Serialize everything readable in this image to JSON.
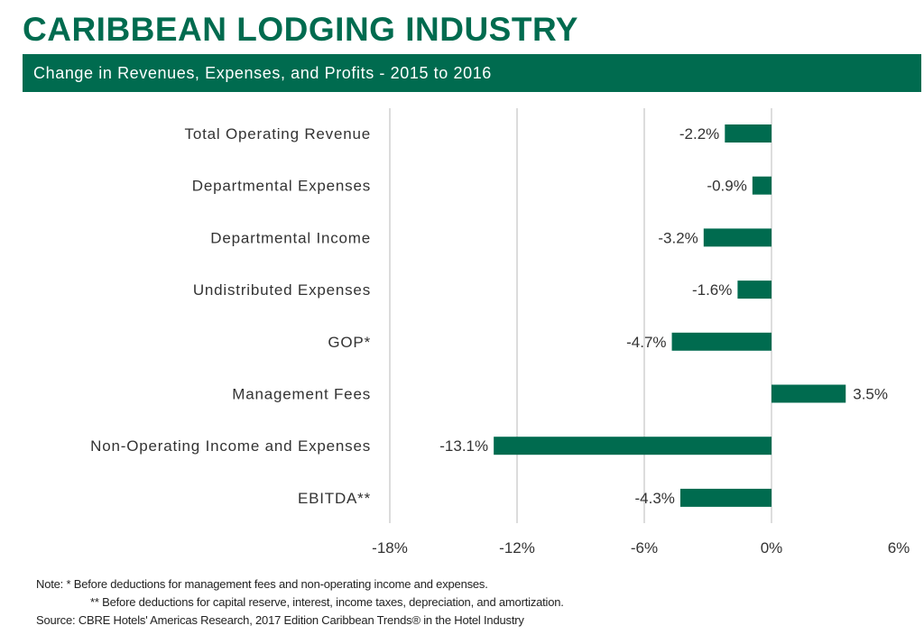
{
  "title": "CARIBBEAN LODGING INDUSTRY",
  "subtitle": "Change in Revenues, Expenses, and Profits - 2015 to 2016",
  "colors": {
    "bar": "#006b4f",
    "banner": "#006b4f",
    "title": "#006b4f",
    "grid": "#d0d0d0"
  },
  "chart_data": {
    "type": "bar",
    "orientation": "horizontal",
    "categories": [
      "Total Operating Revenue",
      "Departmental Expenses",
      "Departmental Income",
      "Undistributed Expenses",
      "GOP*",
      "Management Fees",
      "Non-Operating Income and Expenses",
      "EBITDA**"
    ],
    "values": [
      -2.2,
      -0.9,
      -3.2,
      -1.6,
      -4.7,
      3.5,
      -13.1,
      -4.3
    ],
    "data_labels": [
      "-2.2%",
      "-0.9%",
      "-3.2%",
      "-1.6%",
      "-4.7%",
      "3.5%",
      "-13.1%",
      "-4.3%"
    ],
    "xlim": [
      -18,
      6
    ],
    "xticks": [
      -18,
      -12,
      -6,
      0,
      6
    ],
    "xtick_labels": [
      "-18%",
      "-12%",
      "-6%",
      "0%",
      "6%"
    ],
    "grid": "vertical",
    "legend": "none"
  },
  "notes": {
    "note1": "Note: * Before deductions for management fees and non-operating income and expenses.",
    "note2": "** Before deductions for capital reserve, interest, income taxes, depreciation, and amortization.",
    "source": "Source: CBRE Hotels' Americas Research, 2017 Edition Caribbean Trends® in the Hotel Industry"
  }
}
